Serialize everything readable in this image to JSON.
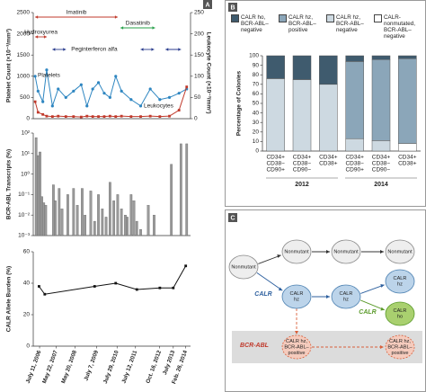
{
  "panel_labels": [
    "A",
    "B",
    "C"
  ],
  "chart_data": [
    {
      "type": "line",
      "y_label": "Platelet Count (×10⁻³/mm³)",
      "y2_label": "Leukocyte Count (×10⁻³/mm³)",
      "xlim": [
        2006.2,
        2014.4
      ],
      "ylim": [
        0,
        2500
      ],
      "yticks": [
        0,
        500,
        1000,
        1500,
        2000,
        2500
      ],
      "y2lim": [
        0,
        250
      ],
      "y2ticks": [
        0,
        50,
        100,
        150,
        200,
        250
      ],
      "x": [
        2006.3,
        2006.45,
        2006.7,
        2006.9,
        2007.2,
        2007.5,
        2007.9,
        2008.3,
        2008.7,
        2009.0,
        2009.3,
        2009.6,
        2009.9,
        2010.2,
        2010.5,
        2010.8,
        2011.3,
        2011.8,
        2012.3,
        2012.8,
        2013.3,
        2013.8,
        2014.2
      ],
      "series": [
        {
          "name": "Platelets",
          "color": "#2e86c1",
          "marker": "circle",
          "values": [
            1000,
            650,
            400,
            1150,
            300,
            700,
            500,
            650,
            800,
            300,
            700,
            850,
            600,
            500,
            1000,
            650,
            450,
            300,
            700,
            450,
            500,
            600,
            700
          ]
        },
        {
          "name": "Leukocytes",
          "color": "#c0392b",
          "marker": "square",
          "axis": "y2",
          "values": [
            40,
            15,
            10,
            6,
            5,
            6,
            5,
            5,
            4,
            6,
            5,
            5,
            5,
            6,
            5,
            6,
            5,
            5,
            6,
            5,
            6,
            20,
            75
          ]
        }
      ],
      "treatments": [
        {
          "name": "Imatinib",
          "color": "#c0392b",
          "periods": [
            [
              2006.3,
              2010.6
            ]
          ]
        },
        {
          "name": "Dasatinib",
          "color": "#27a04a",
          "periods": [
            [
              2010.75,
              2012.55
            ]
          ]
        },
        {
          "name": "Hydroxyurea",
          "color": "#c0392b",
          "periods": [
            [
              2006.3,
              2006.9
            ]
          ]
        },
        {
          "name": "Peginterferon alfa",
          "color": "#2c3e8f",
          "periods": [
            [
              2007.2,
              2007.9
            ],
            [
              2011.8,
              2012.5
            ],
            [
              2013.1,
              2013.9
            ]
          ]
        }
      ]
    },
    {
      "type": "bar",
      "log_scale": true,
      "color": "#9a9a9a",
      "y_label": "BCR-ABL Transcripts (%)",
      "xlim": [
        2006.2,
        2014.4
      ],
      "ylim": [
        0.001,
        100
      ],
      "yticks": [
        {
          "value": 100,
          "label": "10²"
        },
        {
          "value": 10,
          "label": "10¹"
        },
        {
          "value": 1,
          "label": "10⁰"
        },
        {
          "value": 0.1,
          "label": "10⁻¹"
        },
        {
          "value": 0.01,
          "label": "10⁻²"
        },
        {
          "value": 0.001,
          "label": "10⁻³"
        }
      ],
      "x": [
        2006.35,
        2006.45,
        2006.55,
        2006.65,
        2006.75,
        2006.85,
        2007.25,
        2007.35,
        2007.55,
        2007.7,
        2008.0,
        2008.3,
        2008.5,
        2008.75,
        2008.9,
        2009.2,
        2009.4,
        2009.6,
        2009.8,
        2010.0,
        2010.2,
        2010.4,
        2010.6,
        2010.8,
        2011.0,
        2011.1,
        2011.3,
        2011.45,
        2011.6,
        2011.8,
        2012.2,
        2012.5,
        2013.4,
        2013.9,
        2014.2
      ],
      "values": [
        60,
        8,
        12,
        0.08,
        0.04,
        0.03,
        0.3,
        0.05,
        0.2,
        0.02,
        0.1,
        0.2,
        0.03,
        0.2,
        0.01,
        0.15,
        0.005,
        0.1,
        0.02,
        0.008,
        0.4,
        0.05,
        0.1,
        0.02,
        0.01,
        0.008,
        0.1,
        0.05,
        0.005,
        0.002,
        0.03,
        0.01,
        3,
        30,
        30
      ]
    },
    {
      "type": "line",
      "color": "#111111",
      "marker": "square",
      "y_label": "CALR Allele Burden (%)",
      "xlim": [
        2006.2,
        2014.4
      ],
      "xticks": [
        {
          "value": 2006.53,
          "label": "July 11, 2006"
        },
        {
          "value": 2007.39,
          "label": "May 22, 2007"
        },
        {
          "value": 2008.38,
          "label": "May 20, 2008"
        },
        {
          "value": 2009.51,
          "label": "July 7, 2009"
        },
        {
          "value": 2010.57,
          "label": "July 29, 2010"
        },
        {
          "value": 2011.53,
          "label": "July 12, 2011"
        },
        {
          "value": 2012.79,
          "label": "Oct. 16, 2012"
        },
        {
          "value": 2013.5,
          "label": "July 2013"
        },
        {
          "value": 2014.15,
          "label": "Feb. 26, 2014"
        }
      ],
      "ylim": [
        0,
        60
      ],
      "yticks": [
        0,
        20,
        40,
        60
      ],
      "x": [
        2006.5,
        2006.8,
        2009.4,
        2010.5,
        2011.6,
        2012.8,
        2013.5,
        2014.15
      ],
      "values": [
        38,
        33,
        38,
        40,
        36,
        37,
        37,
        51
      ]
    },
    {
      "type": "stacked_bar",
      "y_label": "Percentage of Colonies",
      "ylim": [
        0,
        100
      ],
      "yticks": [
        0,
        10,
        20,
        30,
        40,
        50,
        60,
        70,
        80,
        90,
        100
      ],
      "categories": [
        [
          "CD34+",
          "CD38−",
          "CD90+"
        ],
        [
          "CD34+",
          "CD38−",
          "CD90−"
        ],
        [
          "CD34+",
          "CD38+"
        ],
        [
          "CD34+",
          "CD38−",
          "CD90+"
        ],
        [
          "CD34+",
          "CD38−",
          "CD90−"
        ],
        [
          "CD34+",
          "CD38+"
        ]
      ],
      "groups": [
        "2012",
        "2014"
      ],
      "series": [
        {
          "name": "CALR ho, BCR-ABL–negative",
          "color": "#3f5b6e",
          "values": [
            24,
            25,
            30,
            6,
            4,
            3
          ]
        },
        {
          "name": "CALR hz, BCR-ABL–positive",
          "color": "#8ba6b9",
          "values": [
            0,
            0,
            0,
            81,
            85,
            89
          ]
        },
        {
          "name": "CALR hz, BCR-ABL–negative",
          "color": "#cdd9e1",
          "values": [
            76,
            75,
            70,
            13,
            11,
            0
          ]
        },
        {
          "name": "CALR-nonmutated, BCR-ABL–negative",
          "color": "#ffffff",
          "values": [
            0,
            0,
            0,
            0,
            0,
            8
          ]
        }
      ]
    }
  ],
  "diagram": {
    "nodes": [
      {
        "label": [
          "Nonmutant"
        ]
      },
      {
        "label": [
          "Nonmutant"
        ]
      },
      {
        "label": [
          "Nonmutant"
        ]
      },
      {
        "label": [
          "Nonmutant"
        ]
      },
      {
        "label": [
          "CALR",
          "hz"
        ]
      },
      {
        "label": [
          "CALR",
          "hz"
        ]
      },
      {
        "label": [
          "CALR",
          "hz"
        ]
      },
      {
        "label": [
          "CALR",
          "ho"
        ]
      },
      {
        "label": [
          "CALR hz,",
          "BCR-ABL–",
          "positive"
        ]
      },
      {
        "label": [
          "CALR hz,",
          "BCR-ABL–",
          "positive"
        ]
      }
    ],
    "mutations": [
      "CALR",
      "CALR",
      "BCR-ABL"
    ]
  }
}
